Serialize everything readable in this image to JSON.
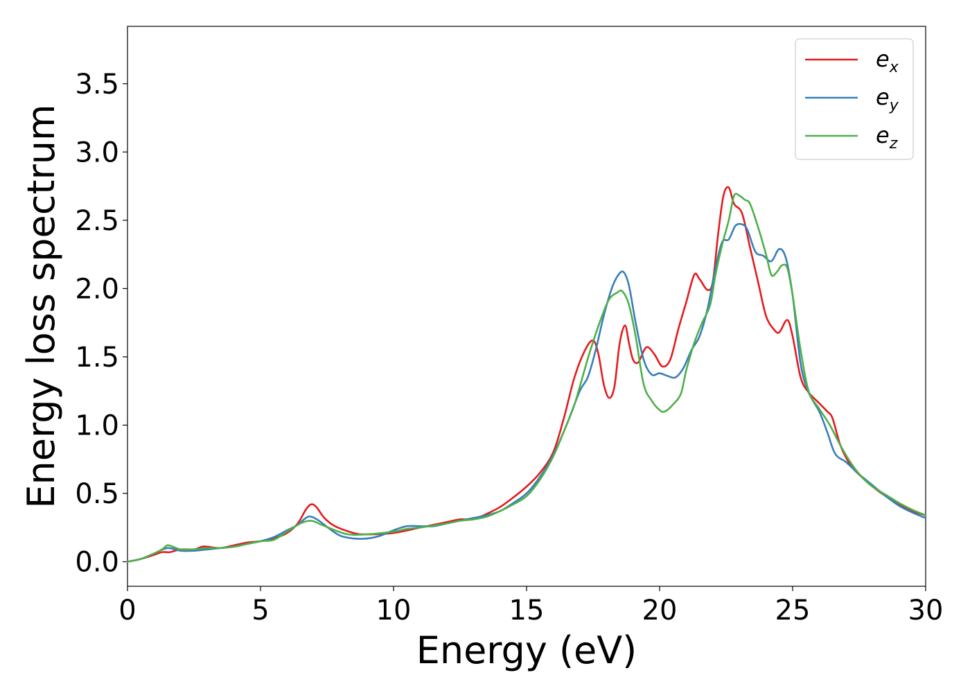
{
  "chart_data": {
    "type": "line",
    "title": "",
    "xlabel": "Energy (eV)",
    "ylabel": "Energy loss spectrum",
    "xlim": [
      0,
      30
    ],
    "ylim": [
      -0.18,
      3.92
    ],
    "xticks": [
      0,
      5,
      10,
      15,
      20,
      25,
      30
    ],
    "xtick_labels": [
      "0",
      "5",
      "10",
      "15",
      "20",
      "25",
      "30"
    ],
    "yticks": [
      0.0,
      0.5,
      1.0,
      1.5,
      2.0,
      2.5,
      3.0,
      3.5
    ],
    "ytick_labels": [
      "0.0",
      "0.5",
      "1.0",
      "1.5",
      "2.0",
      "2.5",
      "3.0",
      "3.5"
    ],
    "grid": false,
    "legend_position": "top-right",
    "series": [
      {
        "name": "e",
        "subscript": "x",
        "color": "#e41a1c",
        "points": [
          [
            0,
            0
          ],
          [
            0.5,
            0.02
          ],
          [
            1,
            0.05
          ],
          [
            1.3,
            0.07
          ],
          [
            1.6,
            0.07
          ],
          [
            2,
            0.09
          ],
          [
            2.5,
            0.09
          ],
          [
            2.8,
            0.11
          ],
          [
            3,
            0.11
          ],
          [
            3.5,
            0.1
          ],
          [
            4,
            0.12
          ],
          [
            4.5,
            0.14
          ],
          [
            5,
            0.15
          ],
          [
            5.5,
            0.17
          ],
          [
            6,
            0.21
          ],
          [
            6.4,
            0.28
          ],
          [
            6.7,
            0.38
          ],
          [
            6.9,
            0.42
          ],
          [
            7.1,
            0.4
          ],
          [
            7.4,
            0.32
          ],
          [
            7.8,
            0.26
          ],
          [
            8.5,
            0.21
          ],
          [
            9,
            0.2
          ],
          [
            10,
            0.21
          ],
          [
            11,
            0.25
          ],
          [
            11.5,
            0.27
          ],
          [
            12,
            0.29
          ],
          [
            12.5,
            0.31
          ],
          [
            13,
            0.31
          ],
          [
            13.5,
            0.35
          ],
          [
            14,
            0.4
          ],
          [
            14.5,
            0.47
          ],
          [
            15,
            0.55
          ],
          [
            15.5,
            0.65
          ],
          [
            16,
            0.8
          ],
          [
            16.4,
            1.05
          ],
          [
            16.8,
            1.35
          ],
          [
            17.2,
            1.55
          ],
          [
            17.5,
            1.62
          ],
          [
            17.7,
            1.52
          ],
          [
            17.9,
            1.3
          ],
          [
            18.1,
            1.2
          ],
          [
            18.3,
            1.28
          ],
          [
            18.5,
            1.6
          ],
          [
            18.7,
            1.73
          ],
          [
            18.85,
            1.6
          ],
          [
            19.0,
            1.48
          ],
          [
            19.2,
            1.46
          ],
          [
            19.5,
            1.57
          ],
          [
            19.8,
            1.52
          ],
          [
            20.1,
            1.43
          ],
          [
            20.4,
            1.48
          ],
          [
            20.7,
            1.7
          ],
          [
            21.0,
            1.9
          ],
          [
            21.3,
            2.1
          ],
          [
            21.5,
            2.07
          ],
          [
            21.8,
            1.99
          ],
          [
            22.0,
            2.05
          ],
          [
            22.2,
            2.4
          ],
          [
            22.4,
            2.68
          ],
          [
            22.6,
            2.74
          ],
          [
            22.8,
            2.62
          ],
          [
            23.1,
            2.55
          ],
          [
            23.4,
            2.3
          ],
          [
            23.7,
            2.05
          ],
          [
            24.0,
            1.8
          ],
          [
            24.3,
            1.7
          ],
          [
            24.5,
            1.68
          ],
          [
            24.8,
            1.77
          ],
          [
            25.0,
            1.65
          ],
          [
            25.3,
            1.35
          ],
          [
            25.6,
            1.24
          ],
          [
            26.0,
            1.16
          ],
          [
            26.3,
            1.1
          ],
          [
            26.5,
            1.05
          ],
          [
            26.8,
            0.85
          ],
          [
            27.2,
            0.7
          ],
          [
            27.6,
            0.62
          ],
          [
            28,
            0.55
          ],
          [
            28.5,
            0.48
          ],
          [
            29,
            0.42
          ],
          [
            29.5,
            0.37
          ],
          [
            30,
            0.34
          ]
        ]
      },
      {
        "name": "e",
        "subscript": "y",
        "color": "#377eb8",
        "points": [
          [
            0,
            0
          ],
          [
            0.5,
            0.02
          ],
          [
            1,
            0.06
          ],
          [
            1.5,
            0.1
          ],
          [
            2,
            0.08
          ],
          [
            2.5,
            0.08
          ],
          [
            3,
            0.09
          ],
          [
            3.5,
            0.1
          ],
          [
            4,
            0.11
          ],
          [
            4.5,
            0.13
          ],
          [
            5,
            0.15
          ],
          [
            5.5,
            0.18
          ],
          [
            6,
            0.23
          ],
          [
            6.4,
            0.27
          ],
          [
            6.7,
            0.32
          ],
          [
            6.9,
            0.33
          ],
          [
            7.2,
            0.3
          ],
          [
            7.6,
            0.24
          ],
          [
            8,
            0.19
          ],
          [
            8.5,
            0.17
          ],
          [
            9,
            0.17
          ],
          [
            9.5,
            0.19
          ],
          [
            10,
            0.23
          ],
          [
            10.5,
            0.26
          ],
          [
            11,
            0.26
          ],
          [
            11.5,
            0.26
          ],
          [
            12,
            0.28
          ],
          [
            12.5,
            0.3
          ],
          [
            13,
            0.32
          ],
          [
            13.5,
            0.34
          ],
          [
            14,
            0.37
          ],
          [
            14.5,
            0.43
          ],
          [
            15,
            0.5
          ],
          [
            15.5,
            0.62
          ],
          [
            16,
            0.78
          ],
          [
            16.5,
            1.0
          ],
          [
            17,
            1.25
          ],
          [
            17.3,
            1.35
          ],
          [
            17.6,
            1.55
          ],
          [
            17.9,
            1.8
          ],
          [
            18.2,
            2.0
          ],
          [
            18.45,
            2.1
          ],
          [
            18.65,
            2.12
          ],
          [
            18.85,
            2.02
          ],
          [
            19.1,
            1.75
          ],
          [
            19.4,
            1.48
          ],
          [
            19.7,
            1.37
          ],
          [
            20.0,
            1.38
          ],
          [
            20.3,
            1.36
          ],
          [
            20.6,
            1.35
          ],
          [
            20.9,
            1.42
          ],
          [
            21.2,
            1.55
          ],
          [
            21.5,
            1.65
          ],
          [
            21.8,
            1.85
          ],
          [
            22.1,
            2.15
          ],
          [
            22.35,
            2.34
          ],
          [
            22.6,
            2.36
          ],
          [
            22.85,
            2.46
          ],
          [
            23.1,
            2.47
          ],
          [
            23.3,
            2.43
          ],
          [
            23.6,
            2.27
          ],
          [
            23.9,
            2.24
          ],
          [
            24.2,
            2.2
          ],
          [
            24.5,
            2.29
          ],
          [
            24.75,
            2.22
          ],
          [
            25.0,
            1.95
          ],
          [
            25.3,
            1.45
          ],
          [
            25.6,
            1.24
          ],
          [
            26.0,
            1.1
          ],
          [
            26.3,
            0.95
          ],
          [
            26.6,
            0.79
          ],
          [
            27.0,
            0.73
          ],
          [
            27.5,
            0.64
          ],
          [
            28,
            0.56
          ],
          [
            28.5,
            0.48
          ],
          [
            29,
            0.41
          ],
          [
            29.5,
            0.36
          ],
          [
            30,
            0.32
          ]
        ]
      },
      {
        "name": "e",
        "subscript": "z",
        "color": "#4daf4a",
        "points": [
          [
            0,
            0
          ],
          [
            0.5,
            0.02
          ],
          [
            1,
            0.06
          ],
          [
            1.3,
            0.09
          ],
          [
            1.5,
            0.12
          ],
          [
            1.7,
            0.11
          ],
          [
            2,
            0.09
          ],
          [
            2.5,
            0.09
          ],
          [
            3,
            0.1
          ],
          [
            3.5,
            0.1
          ],
          [
            4,
            0.11
          ],
          [
            4.5,
            0.13
          ],
          [
            5,
            0.15
          ],
          [
            5.5,
            0.16
          ],
          [
            6,
            0.22
          ],
          [
            6.5,
            0.28
          ],
          [
            6.9,
            0.3
          ],
          [
            7.3,
            0.27
          ],
          [
            7.8,
            0.23
          ],
          [
            8.3,
            0.2
          ],
          [
            9,
            0.2
          ],
          [
            10,
            0.22
          ],
          [
            10.5,
            0.24
          ],
          [
            11,
            0.25
          ],
          [
            12,
            0.28
          ],
          [
            12.5,
            0.3
          ],
          [
            13,
            0.31
          ],
          [
            13.5,
            0.33
          ],
          [
            14,
            0.37
          ],
          [
            14.5,
            0.42
          ],
          [
            15,
            0.48
          ],
          [
            15.5,
            0.6
          ],
          [
            16,
            0.77
          ],
          [
            16.5,
            1.0
          ],
          [
            16.8,
            1.15
          ],
          [
            17.1,
            1.35
          ],
          [
            17.4,
            1.55
          ],
          [
            17.8,
            1.78
          ],
          [
            18.1,
            1.92
          ],
          [
            18.4,
            1.97
          ],
          [
            18.6,
            1.98
          ],
          [
            18.85,
            1.88
          ],
          [
            19.1,
            1.65
          ],
          [
            19.4,
            1.3
          ],
          [
            19.7,
            1.18
          ],
          [
            20.0,
            1.11
          ],
          [
            20.2,
            1.1
          ],
          [
            20.5,
            1.15
          ],
          [
            20.8,
            1.23
          ],
          [
            21.0,
            1.4
          ],
          [
            21.3,
            1.6
          ],
          [
            21.6,
            1.75
          ],
          [
            21.9,
            1.88
          ],
          [
            22.1,
            2.1
          ],
          [
            22.35,
            2.32
          ],
          [
            22.6,
            2.5
          ],
          [
            22.8,
            2.68
          ],
          [
            23.0,
            2.68
          ],
          [
            23.2,
            2.65
          ],
          [
            23.4,
            2.62
          ],
          [
            23.7,
            2.45
          ],
          [
            24.0,
            2.25
          ],
          [
            24.2,
            2.1
          ],
          [
            24.4,
            2.12
          ],
          [
            24.6,
            2.17
          ],
          [
            24.8,
            2.15
          ],
          [
            25.0,
            1.95
          ],
          [
            25.3,
            1.55
          ],
          [
            25.6,
            1.25
          ],
          [
            26.0,
            1.12
          ],
          [
            26.4,
            1.0
          ],
          [
            26.8,
            0.85
          ],
          [
            27.2,
            0.72
          ],
          [
            27.6,
            0.62
          ],
          [
            28,
            0.55
          ],
          [
            28.5,
            0.49
          ],
          [
            29,
            0.43
          ],
          [
            29.5,
            0.38
          ],
          [
            30,
            0.34
          ]
        ]
      }
    ]
  }
}
